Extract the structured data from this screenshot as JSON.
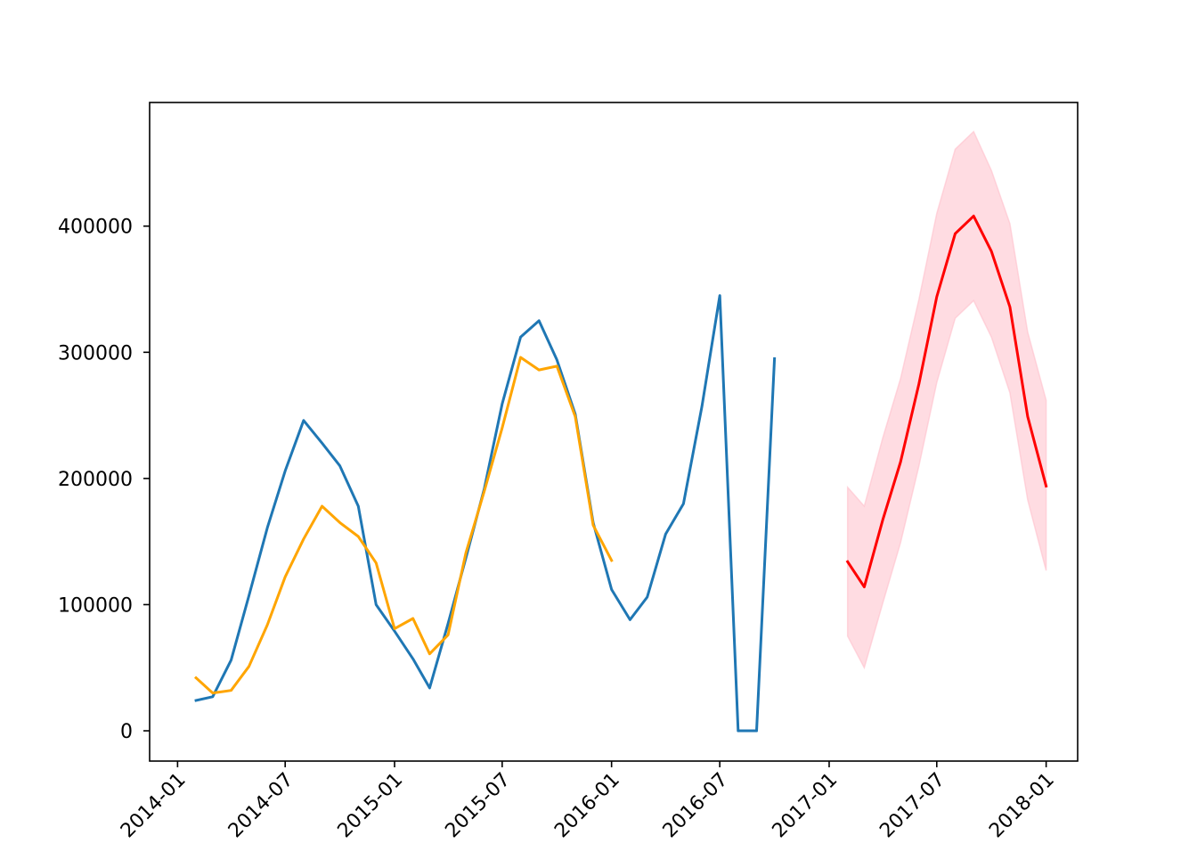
{
  "chart_data": {
    "type": "line",
    "title": "",
    "xlabel": "",
    "ylabel": "",
    "x_tick_labels": [
      "2014-01",
      "2014-07",
      "2015-01",
      "2015-07",
      "2016-01",
      "2016-07",
      "2017-01",
      "2017-07",
      "2018-01"
    ],
    "y_tick_labels": [
      "0",
      "100000",
      "200000",
      "300000",
      "400000"
    ],
    "y_ticks": [
      0,
      100000,
      200000,
      300000,
      400000
    ],
    "xlim": [
      "2013-11-15",
      "2018-02-23"
    ],
    "ylim": [
      -24000,
      498000
    ],
    "grid": false,
    "legend": "none",
    "series": [
      {
        "color": "#1f77b4",
        "kind": "line",
        "x": [
          "2014-02-01",
          "2014-03-01",
          "2014-04-01",
          "2014-05-01",
          "2014-06-01",
          "2014-07-01",
          "2014-08-01",
          "2014-09-01",
          "2014-10-01",
          "2014-11-01",
          "2014-12-01",
          "2015-01-01",
          "2015-02-01",
          "2015-03-01",
          "2015-04-01",
          "2015-05-01",
          "2015-06-01",
          "2015-07-01",
          "2015-08-01",
          "2015-09-01",
          "2015-10-01",
          "2015-11-01",
          "2015-12-01",
          "2016-01-01",
          "2016-02-01",
          "2016-03-01",
          "2016-04-01",
          "2016-05-01",
          "2016-06-01",
          "2016-07-01",
          "2016-08-01",
          "2016-09-01",
          "2016-10-01"
        ],
        "y": [
          24000,
          27000,
          56000,
          107000,
          161000,
          206000,
          246000,
          228000,
          210000,
          178000,
          100000,
          79000,
          57000,
          34000,
          85000,
          137000,
          192000,
          259000,
          312000,
          325000,
          294000,
          251000,
          165000,
          112000,
          88000,
          106000,
          156000,
          180000,
          257000,
          345000,
          0,
          0,
          295000
        ]
      },
      {
        "color": "#ffa500",
        "kind": "line",
        "x": [
          "2014-02-01",
          "2014-03-01",
          "2014-04-01",
          "2014-05-01",
          "2014-06-01",
          "2014-07-01",
          "2014-08-01",
          "2014-09-01",
          "2014-10-01",
          "2014-11-01",
          "2014-12-01",
          "2015-01-01",
          "2015-02-01",
          "2015-03-01",
          "2015-04-01",
          "2015-05-01",
          "2015-06-01",
          "2015-07-01",
          "2015-08-01",
          "2015-09-01",
          "2015-10-01",
          "2015-11-01",
          "2015-12-01",
          "2016-01-01"
        ],
        "y": [
          42000,
          30000,
          32000,
          51000,
          84000,
          122000,
          152000,
          178000,
          165000,
          154000,
          133000,
          81000,
          89000,
          61000,
          76000,
          141000,
          190000,
          240000,
          296000,
          286000,
          289000,
          249000,
          163000,
          135000
        ]
      },
      {
        "color": "#ff0000",
        "kind": "line",
        "x": [
          "2017-02-01",
          "2017-03-01",
          "2017-04-01",
          "2017-05-01",
          "2017-06-01",
          "2017-07-01",
          "2017-08-01",
          "2017-09-01",
          "2017-10-01",
          "2017-11-01",
          "2017-12-01",
          "2018-01-01"
        ],
        "y": [
          134000,
          114000,
          167000,
          213000,
          275000,
          344000,
          394000,
          408000,
          380000,
          336000,
          249000,
          194000
        ]
      },
      {
        "color": "#ffc0cb",
        "kind": "band",
        "x": [
          "2017-02-01",
          "2017-03-01",
          "2017-04-01",
          "2017-05-01",
          "2017-06-01",
          "2017-07-01",
          "2017-08-01",
          "2017-09-01",
          "2017-10-01",
          "2017-11-01",
          "2017-12-01",
          "2018-01-01"
        ],
        "upper": [
          193000,
          178000,
          232000,
          279000,
          342000,
          410000,
          461000,
          475000,
          444000,
          402000,
          316000,
          262000
        ],
        "lower": [
          75000,
          50000,
          101000,
          149000,
          210000,
          276000,
          327000,
          341000,
          312000,
          268000,
          183000,
          127000
        ]
      }
    ]
  }
}
